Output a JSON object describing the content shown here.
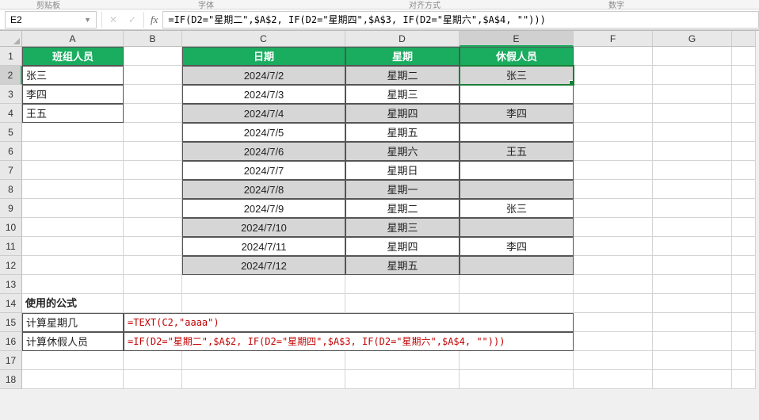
{
  "ribbon_top_labels": [
    "剪贴板",
    "字体",
    "对齐方式",
    "数字"
  ],
  "name_box": "E2",
  "formula_bar": "=IF(D2=\"星期二\",$A$2, IF(D2=\"星期四\",$A$3, IF(D2=\"星期六\",$A$4, \"\")))",
  "columns": [
    "A",
    "B",
    "C",
    "D",
    "E",
    "F",
    "G",
    ""
  ],
  "col_widths": [
    "wA",
    "wB",
    "wC",
    "wD",
    "wE",
    "wF",
    "wG",
    "wrest"
  ],
  "active_col_index": 4,
  "active_row_index": 1,
  "row_count": 18,
  "selected": {
    "row": 1,
    "col": 4
  },
  "headers": {
    "team": "班组人员",
    "date": "日期",
    "weekday": "星期",
    "off": "休假人员"
  },
  "team": [
    "张三",
    "李四",
    "王五"
  ],
  "schedule": [
    {
      "date": "2024/7/2",
      "wd": "星期二",
      "off": "张三",
      "shade": true
    },
    {
      "date": "2024/7/3",
      "wd": "星期三",
      "off": "",
      "shade": false
    },
    {
      "date": "2024/7/4",
      "wd": "星期四",
      "off": "李四",
      "shade": true
    },
    {
      "date": "2024/7/5",
      "wd": "星期五",
      "off": "",
      "shade": false
    },
    {
      "date": "2024/7/6",
      "wd": "星期六",
      "off": "王五",
      "shade": true
    },
    {
      "date": "2024/7/7",
      "wd": "星期日",
      "off": "",
      "shade": false
    },
    {
      "date": "2024/7/8",
      "wd": "星期一",
      "off": "",
      "shade": true
    },
    {
      "date": "2024/7/9",
      "wd": "星期二",
      "off": "张三",
      "shade": false
    },
    {
      "date": "2024/7/10",
      "wd": "星期三",
      "off": "",
      "shade": true
    },
    {
      "date": "2024/7/11",
      "wd": "星期四",
      "off": "李四",
      "shade": false
    },
    {
      "date": "2024/7/12",
      "wd": "星期五",
      "off": "",
      "shade": true
    }
  ],
  "formulas_section": {
    "title": "使用的公式",
    "rows": [
      {
        "label": "计算星期几",
        "formula": "=TEXT(C2,\"aaaa\")"
      },
      {
        "label": "计算休假人员",
        "formula": "=IF(D2=\"星期二\",$A$2, IF(D2=\"星期四\",$A$3, IF(D2=\"星期六\",$A$4, \"\")))"
      }
    ]
  },
  "colors": {
    "header_bg": "#1aac5f",
    "shade_bg": "#d6d6d6",
    "red_text": "#c00000",
    "selection": "#1a7f37"
  }
}
